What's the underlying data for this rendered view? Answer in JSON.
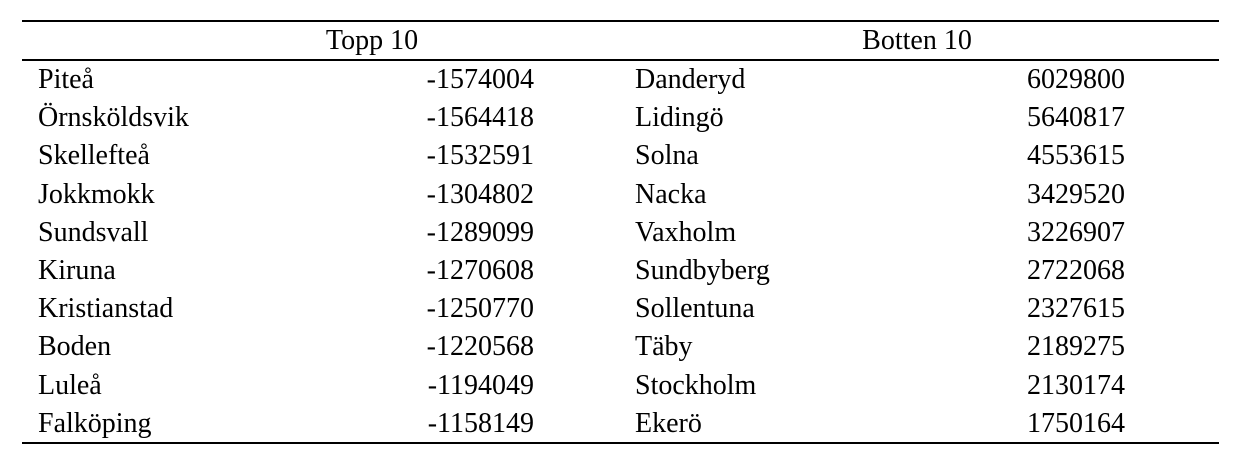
{
  "table": {
    "groups": [
      {
        "header": "Topp 10",
        "rows": [
          {
            "name": "Piteå",
            "value": "-1574004"
          },
          {
            "name": "Örnsköldsvik",
            "value": "-1564418"
          },
          {
            "name": "Skellefteå",
            "value": "-1532591"
          },
          {
            "name": "Jokkmokk",
            "value": "-1304802"
          },
          {
            "name": "Sundsvall",
            "value": "-1289099"
          },
          {
            "name": "Kiruna",
            "value": "-1270608"
          },
          {
            "name": "Kristianstad",
            "value": "-1250770"
          },
          {
            "name": "Boden",
            "value": "-1220568"
          },
          {
            "name": "Luleå",
            "value": "-1194049"
          },
          {
            "name": "Falköping",
            "value": "-1158149"
          }
        ]
      },
      {
        "header": "Botten 10",
        "rows": [
          {
            "name": "Danderyd",
            "value": "6029800"
          },
          {
            "name": "Lidingö",
            "value": "5640817"
          },
          {
            "name": "Solna",
            "value": "4553615"
          },
          {
            "name": "Nacka",
            "value": "3429520"
          },
          {
            "name": "Vaxholm",
            "value": "3226907"
          },
          {
            "name": "Sundbyberg",
            "value": "2722068"
          },
          {
            "name": "Sollentuna",
            "value": "2327615"
          },
          {
            "name": "Täby",
            "value": "2189275"
          },
          {
            "name": "Stockholm",
            "value": "2130174"
          },
          {
            "name": "Ekerö",
            "value": "1750164"
          }
        ]
      }
    ]
  }
}
